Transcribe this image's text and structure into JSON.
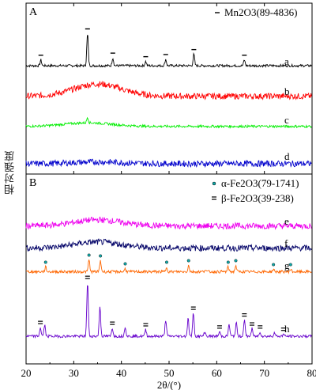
{
  "chart_data": {
    "type": "line",
    "ylabel": "相对强度",
    "xlabel": "2θ/(°)",
    "xlim": [
      20,
      80
    ],
    "x_ticks": [
      "20",
      "30",
      "40",
      "50",
      "60",
      "70",
      "80"
    ],
    "grid": false,
    "panels": [
      {
        "panel_label": "A",
        "legend": [
          {
            "marker": "dash",
            "label": "Mn2O3(89-4836)"
          }
        ],
        "series": [
          {
            "name": "a",
            "color": "#000000",
            "baseline": 0.55,
            "peaks": [
              [
                23.1,
                0.8
              ],
              [
                32.9,
                4.5
              ],
              [
                38.2,
                1.1
              ],
              [
                45.1,
                0.6
              ],
              [
                49.3,
                0.9
              ],
              [
                55.2,
                1.6
              ],
              [
                65.8,
                0.8
              ]
            ],
            "marker_positions": [
              23.1,
              32.9,
              38.2,
              45.1,
              49.3,
              55.2,
              65.8
            ]
          },
          {
            "name": "b",
            "color": "#ff0000",
            "baseline": 0.2,
            "hump": {
              "center": 35,
              "height": 0.7
            }
          },
          {
            "name": "c",
            "color": "#00ee00",
            "baseline": 0.25,
            "peaks": [
              [
                32.9,
                0.8
              ]
            ],
            "hump": {
              "center": 33,
              "height": 0.5
            }
          },
          {
            "name": "d",
            "color": "#0000cc",
            "baseline": 0.05,
            "hump": {
              "center": 35,
              "height": 0.1
            }
          }
        ]
      },
      {
        "panel_label": "B",
        "legend": [
          {
            "marker": "dot",
            "label": "α-Fe2O3(79-1741)"
          },
          {
            "marker": "double-dash",
            "label": "β-Fe2O3(39-238)"
          }
        ],
        "series": [
          {
            "name": "e",
            "color": "#ee00ee",
            "baseline": 0.2,
            "hump": {
              "center": 35,
              "height": 0.35
            }
          },
          {
            "name": "f",
            "color": "#000066",
            "baseline": 0.2,
            "hump": {
              "center": 35,
              "height": 0.35
            }
          },
          {
            "name": "g",
            "color": "#ff6600",
            "baseline": 0.25,
            "peaks": [
              [
                24.1,
                0.6
              ],
              [
                33.2,
                1.5
              ],
              [
                35.6,
                1.4
              ],
              [
                40.8,
                0.4
              ],
              [
                49.5,
                0.6
              ],
              [
                54.1,
                0.8
              ],
              [
                57.6,
                0.3
              ],
              [
                62.4,
                0.6
              ],
              [
                64.0,
                0.8
              ],
              [
                71.9,
                0.3
              ],
              [
                75.5,
                0.3
              ]
            ],
            "marker_positions": [
              24.1,
              33.2,
              35.6,
              40.8,
              49.5,
              54.1,
              62.4,
              64.0,
              71.9,
              75.5
            ]
          },
          {
            "name": "h",
            "color": "#6600cc",
            "baseline": 0.1,
            "peaks": [
              [
                23.0,
                1.2
              ],
              [
                23.9,
                1.5
              ],
              [
                32.9,
                7.2
              ],
              [
                35.5,
                4.0
              ],
              [
                38.1,
                1.1
              ],
              [
                40.8,
                1.3
              ],
              [
                45.1,
                0.9
              ],
              [
                49.3,
                2.2
              ],
              [
                54.0,
                2.4
              ],
              [
                55.1,
                3.1
              ],
              [
                57.5,
                0.6
              ],
              [
                60.6,
                0.6
              ],
              [
                62.6,
                1.6
              ],
              [
                64.1,
                1.8
              ],
              [
                65.8,
                2.2
              ],
              [
                67.4,
                1.0
              ],
              [
                69.1,
                0.6
              ],
              [
                72.1,
                0.5
              ],
              [
                74.0,
                0.3
              ]
            ],
            "marker_positions": [
              23.0,
              32.9,
              38.1,
              45.1,
              55.1,
              60.6,
              65.8,
              67.4,
              69.1,
              74.0
            ]
          }
        ]
      }
    ]
  }
}
